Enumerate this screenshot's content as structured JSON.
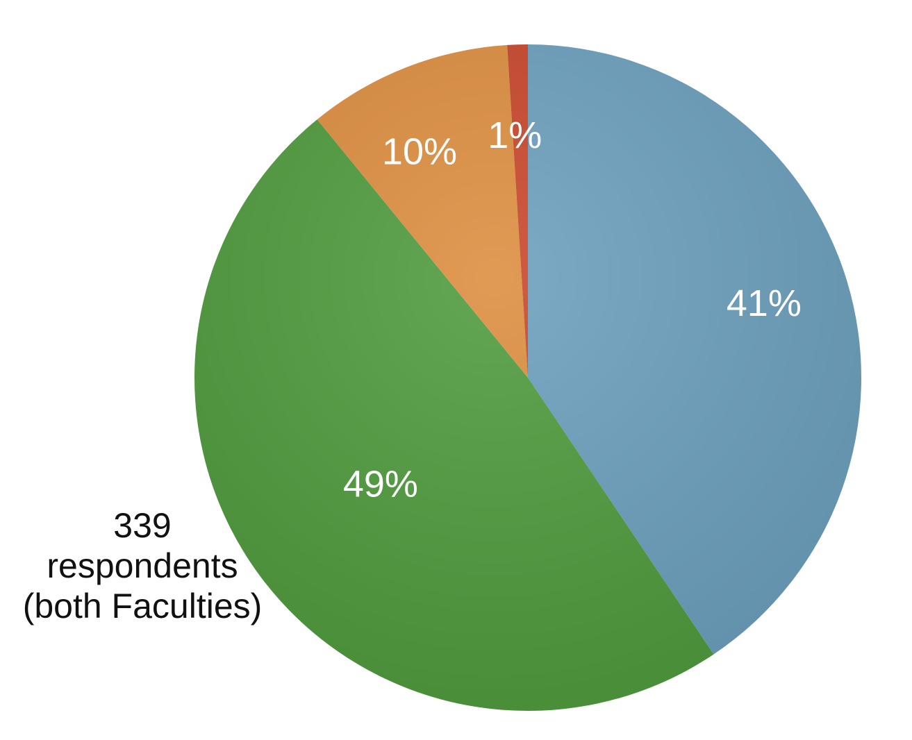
{
  "chart_data": {
    "type": "pie",
    "title": "",
    "slices": [
      {
        "value": 41,
        "label": "41%",
        "color": "#6b9fbd"
      },
      {
        "value": 49,
        "label": "49%",
        "color": "#4e9a3c"
      },
      {
        "value": 10,
        "label": "10%",
        "color": "#dd8d3e"
      },
      {
        "value": 1,
        "label": "1%",
        "color": "#c9452a"
      }
    ],
    "annotation": [
      "339",
      "respondents",
      "(both Faculties)"
    ],
    "start_angle": "12 o'clock",
    "direction": "clockwise"
  }
}
